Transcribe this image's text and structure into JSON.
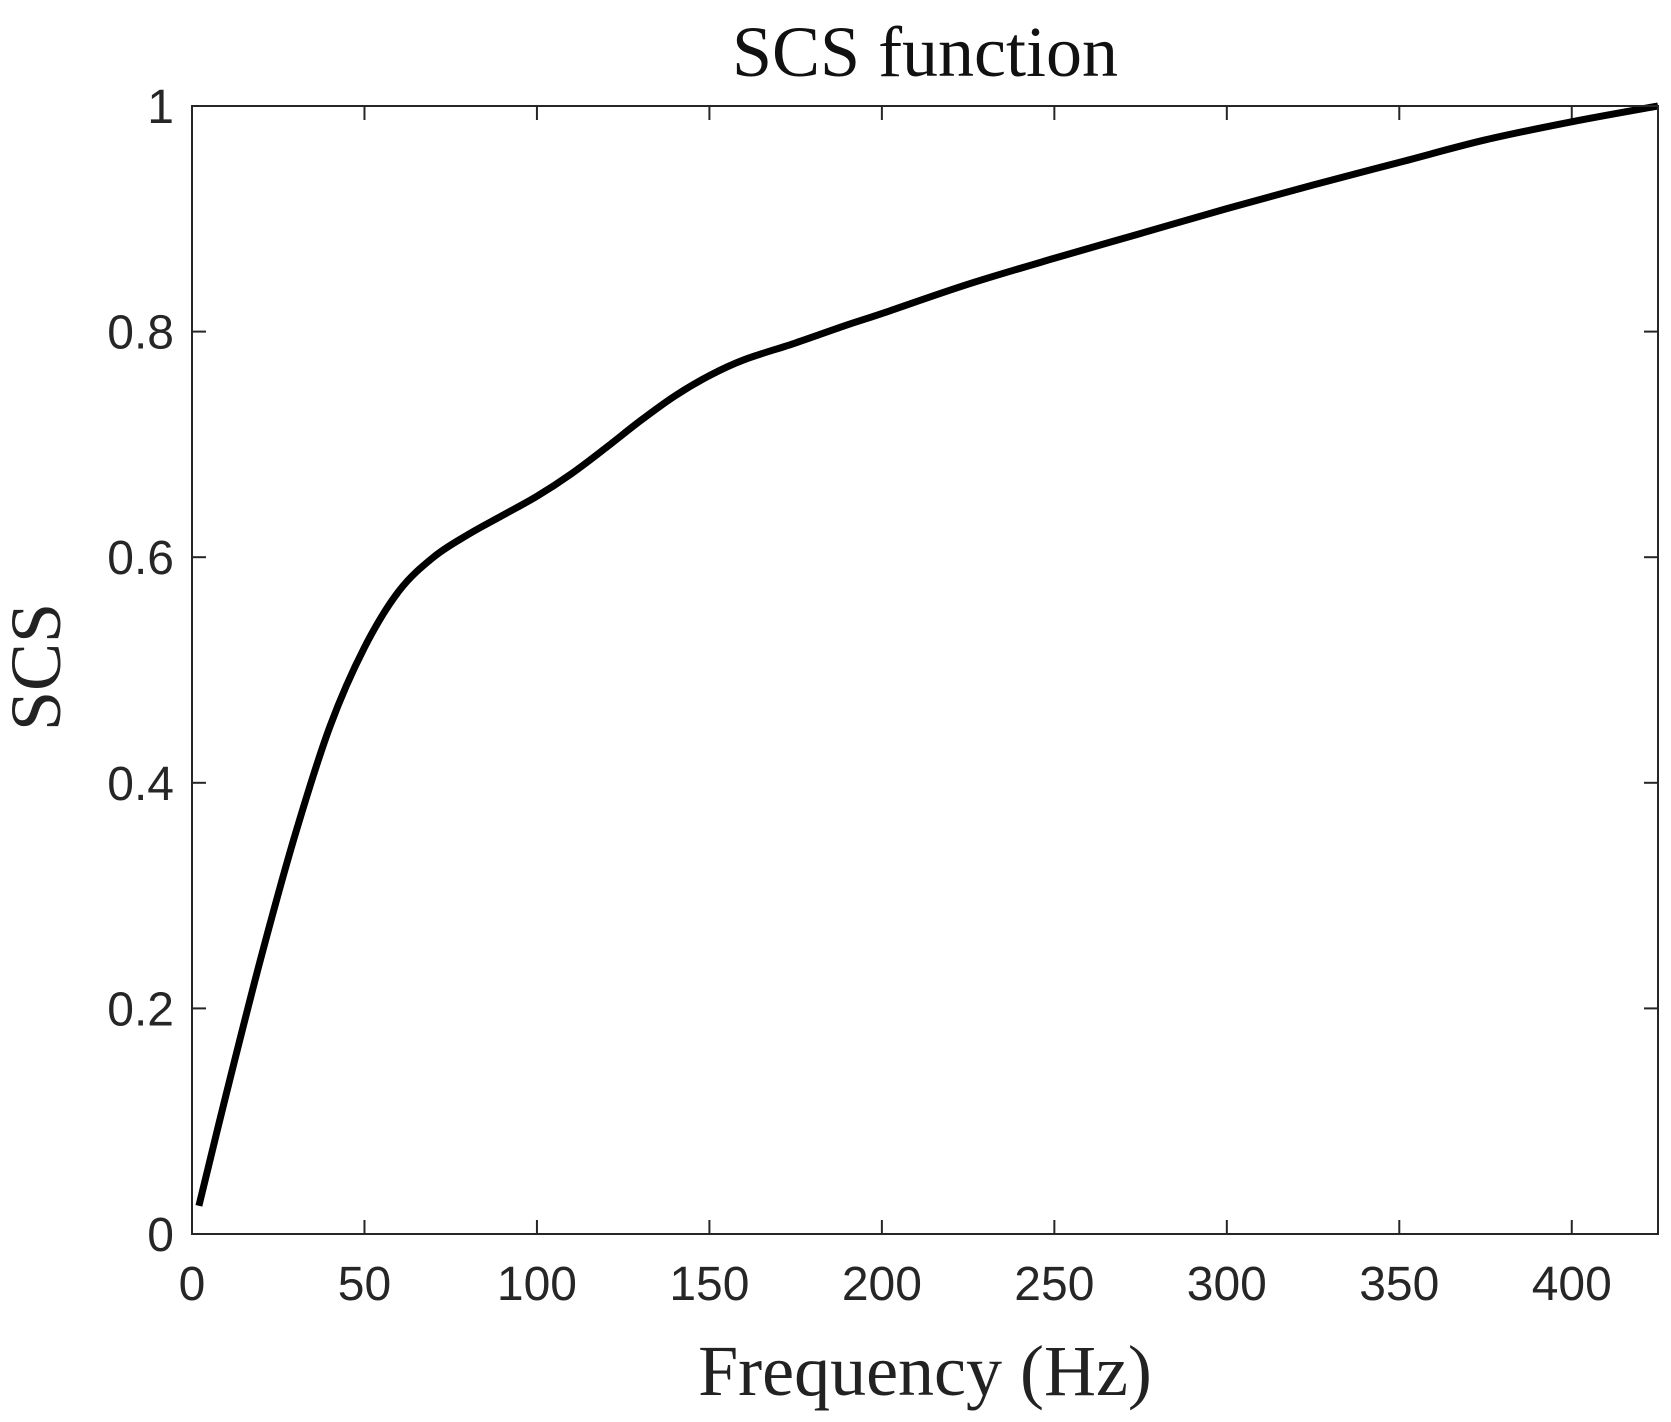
{
  "chart_data": {
    "type": "line",
    "title": "SCS function",
    "xlabel": "Frequency (Hz)",
    "ylabel": "SCS",
    "xlim": [
      0,
      425
    ],
    "ylim": [
      0,
      1
    ],
    "xticks": [
      0,
      50,
      100,
      150,
      200,
      250,
      300,
      350,
      400
    ],
    "yticks": [
      0,
      0.2,
      0.4,
      0.6,
      0.8,
      1
    ],
    "xtick_labels": [
      "0",
      "50",
      "100",
      "150",
      "200",
      "250",
      "300",
      "350",
      "400"
    ],
    "ytick_labels": [
      "0",
      "0.2",
      "0.4",
      "0.6",
      "0.8",
      "1"
    ],
    "grid": false,
    "colors": {
      "line": "#000000",
      "axes": "#262626"
    },
    "series": [
      {
        "x": [
          2,
          10,
          20,
          30,
          40,
          50,
          60,
          70,
          80,
          90,
          100,
          110,
          120,
          130,
          140,
          150,
          160,
          175,
          190,
          200,
          225,
          250,
          275,
          300,
          325,
          350,
          375,
          400,
          425
        ],
        "y": [
          0.025,
          0.125,
          0.245,
          0.355,
          0.45,
          0.52,
          0.57,
          0.6,
          0.62,
          0.637,
          0.654,
          0.674,
          0.697,
          0.721,
          0.743,
          0.761,
          0.775,
          0.79,
          0.806,
          0.816,
          0.842,
          0.865,
          0.887,
          0.909,
          0.93,
          0.95,
          0.97,
          0.986,
          1.0
        ]
      }
    ]
  }
}
